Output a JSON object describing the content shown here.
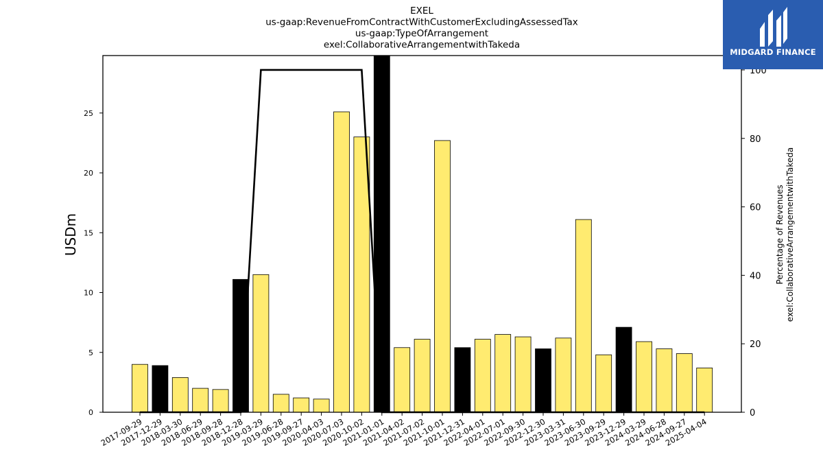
{
  "chart_data": {
    "type": "bar",
    "title_lines": [
      "EXEL",
      "us-gaap:RevenueFromContractWithCustomerExcludingAssessedTax",
      "us-gaap:TypeOfArrangement",
      "exel:CollaborativeArrangementwithTakeda"
    ],
    "ylabel": "USDm",
    "ylabel_right": [
      "Percentage of Revenues",
      "exel:CollaborativeArrangementwithTakeda"
    ],
    "ylim": [
      0,
      29.8
    ],
    "ylim_right": [
      0,
      104.2
    ],
    "yticks": [
      0,
      5,
      10,
      15,
      20,
      25
    ],
    "yticks_right": [
      0,
      20,
      40,
      60,
      80,
      100
    ],
    "categories": [
      "2017-09-29",
      "2017-12-29",
      "2018-03-30",
      "2018-06-29",
      "2018-09-28",
      "2018-12-28",
      "2019-03-29",
      "2019-06-28",
      "2019-09-27",
      "2020-04-03",
      "2020-07-03",
      "2020-10-02",
      "2021-01-01",
      "2021-04-02",
      "2021-07-02",
      "2021-10-01",
      "2021-12-31",
      "2022-04-01",
      "2022-07-01",
      "2022-09-30",
      "2022-12-30",
      "2023-03-31",
      "2023-06-30",
      "2023-09-29",
      "2023-12-29",
      "2024-03-29",
      "2024-06-28",
      "2024-09-27",
      "2025-04-04"
    ],
    "series": [
      {
        "values": [
          4.0,
          3.9,
          2.9,
          2.0,
          1.9,
          11.1,
          11.5,
          1.5,
          1.2,
          1.1,
          25.1,
          23.0,
          30.0,
          5.4,
          6.1,
          22.7,
          5.4,
          6.1,
          6.5,
          6.3,
          5.3,
          6.2,
          16.1,
          4.8,
          7.1,
          5.9,
          5.3,
          4.9,
          3.7
        ],
        "highlight": [
          false,
          true,
          false,
          false,
          false,
          true,
          false,
          false,
          false,
          false,
          false,
          false,
          true,
          false,
          false,
          false,
          true,
          false,
          false,
          false,
          true,
          false,
          false,
          false,
          true,
          false,
          false,
          false,
          false
        ],
        "color": "#ffeb70",
        "highlight_color": "#000000"
      },
      {
        "type": "line",
        "axis": "right",
        "values": [
          0,
          0,
          0,
          0,
          0,
          0,
          100,
          100,
          100,
          100,
          100,
          100,
          0,
          0,
          0,
          0,
          0,
          0,
          0,
          0,
          0,
          0,
          0,
          0,
          0,
          0,
          0,
          0,
          0
        ],
        "color": "#000000"
      }
    ],
    "grid": false
  },
  "logo": {
    "text": "MIDGARD FINANCE",
    "color": "#2a5db0"
  }
}
